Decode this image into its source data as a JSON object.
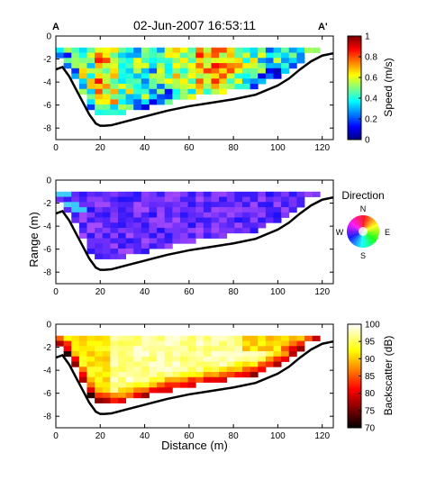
{
  "title": "02-Jun-2007 16:53:11",
  "section_labels": {
    "left": "A",
    "right": "A'"
  },
  "colors": {
    "profile_line": "#000000",
    "axis": "#000000",
    "background": "#ffffff"
  },
  "chart_data": [
    {
      "type": "heatmap",
      "variable": "Speed",
      "xlim": [
        0,
        125
      ],
      "ylim": [
        -9,
        0
      ],
      "xticks": [
        0,
        20,
        40,
        60,
        80,
        100,
        120
      ],
      "yticks": [
        0,
        -2,
        -4,
        -6,
        -8
      ],
      "xlabel": "",
      "ylabel": "",
      "colorbar": {
        "label": "Speed (m/s)",
        "range": [
          0,
          1
        ],
        "ticks": [
          0,
          0.2,
          0.4,
          0.6,
          0.8,
          1
        ],
        "tick_labels": [
          "0",
          "0.2",
          "0.4",
          "0.6",
          "0.8",
          "1"
        ],
        "colormap": "jet"
      }
    },
    {
      "type": "heatmap",
      "variable": "Direction",
      "xlim": [
        0,
        125
      ],
      "ylim": [
        -9,
        0
      ],
      "xticks": [
        0,
        20,
        40,
        60,
        80,
        100,
        120
      ],
      "yticks": [
        0,
        -2,
        -4,
        -6,
        -8
      ],
      "xlabel": "",
      "ylabel": "Range (m)",
      "legend": {
        "title": "Direction",
        "type": "color-wheel",
        "labels": {
          "n": "N",
          "s": "S",
          "e": "E",
          "w": "W"
        }
      }
    },
    {
      "type": "heatmap",
      "variable": "Backscatter",
      "xlim": [
        0,
        125
      ],
      "ylim": [
        -9,
        0
      ],
      "xticks": [
        0,
        20,
        40,
        60,
        80,
        100,
        120
      ],
      "yticks": [
        0,
        -2,
        -4,
        -6,
        -8
      ],
      "xlabel": "Distance (m)",
      "ylabel": "",
      "colorbar": {
        "label": "Backscatter (dB)",
        "range": [
          70,
          100
        ],
        "ticks": [
          70,
          75,
          80,
          85,
          90,
          95,
          100
        ],
        "tick_labels": [
          "70",
          "75",
          "80",
          "85",
          "90",
          "95",
          "100"
        ],
        "colormap": "hot"
      }
    }
  ],
  "bed_profile": {
    "x": [
      0,
      3,
      6,
      9,
      12,
      15,
      18,
      20,
      22,
      25,
      30,
      40,
      50,
      60,
      70,
      80,
      90,
      100,
      105,
      110,
      115,
      120,
      125
    ],
    "y": [
      -2.9,
      -2.7,
      -3.5,
      -4.6,
      -5.7,
      -6.8,
      -7.6,
      -7.8,
      -7.8,
      -7.75,
      -7.5,
      -7.0,
      -6.5,
      -6.1,
      -5.8,
      -5.5,
      -5.1,
      -4.3,
      -3.7,
      -2.9,
      -2.2,
      -1.7,
      -1.5
    ]
  }
}
